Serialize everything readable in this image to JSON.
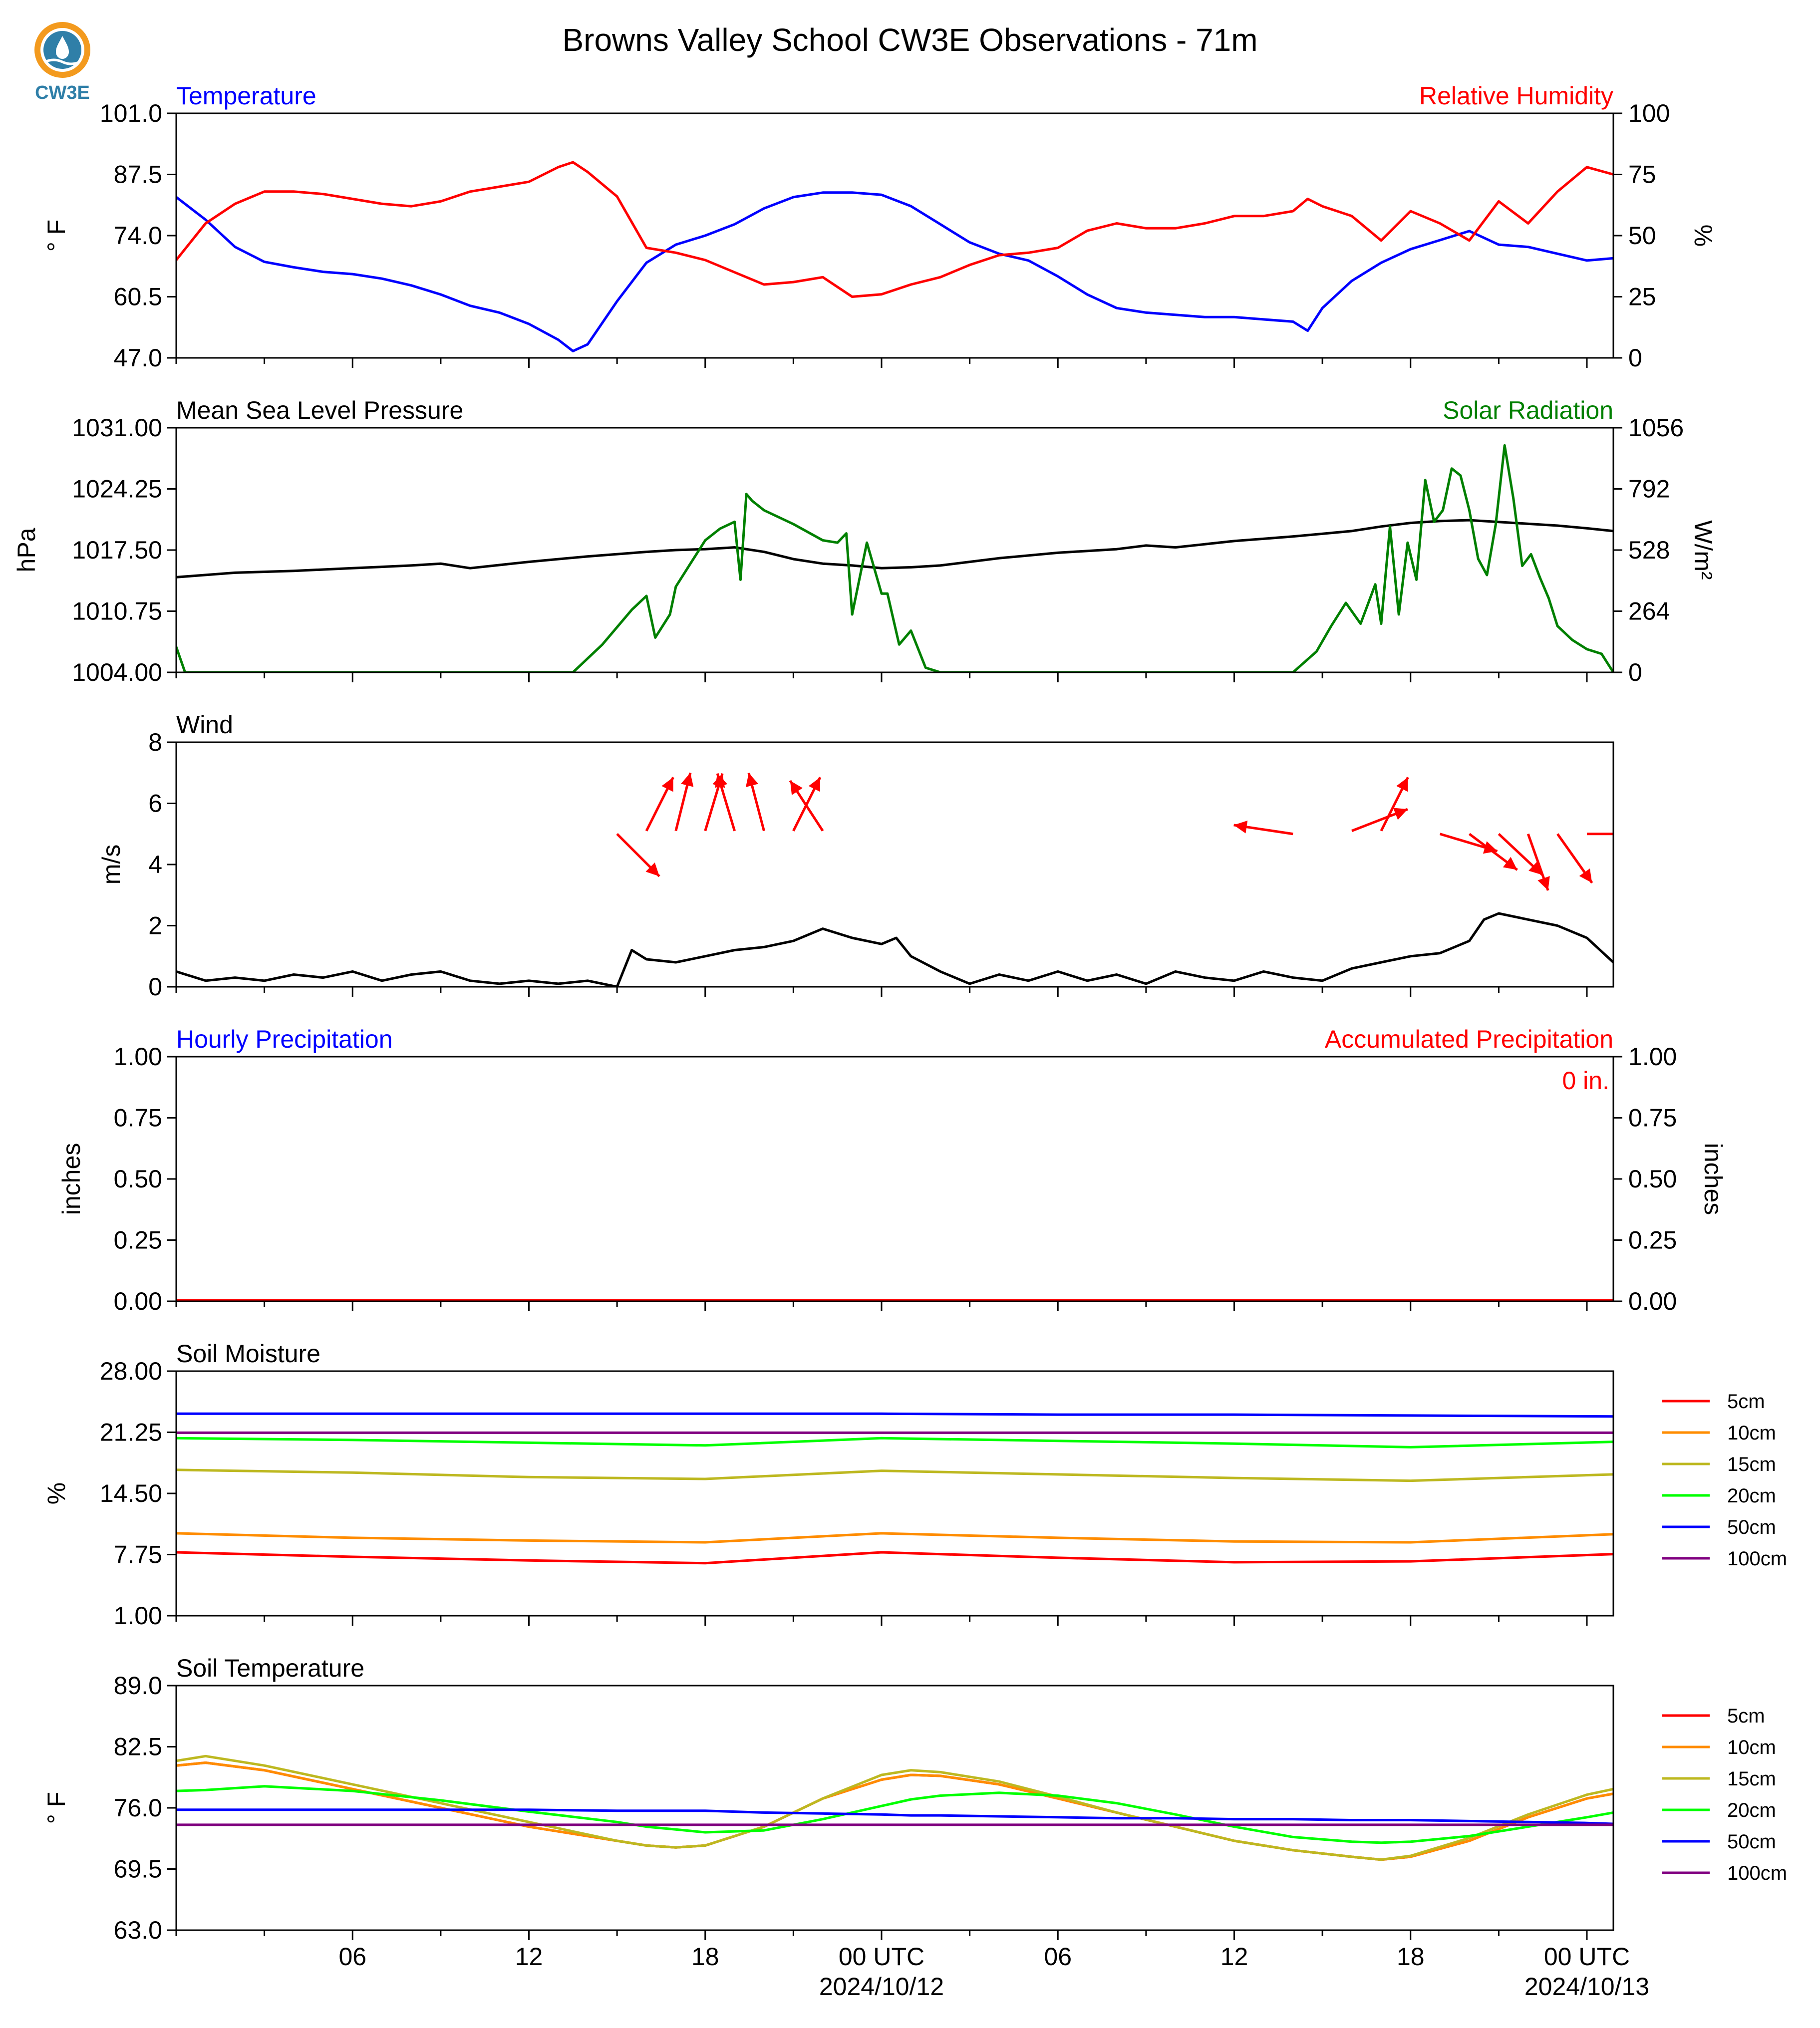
{
  "title": "Browns Valley School CW3E Observations - 71m",
  "logo_text": "CW3E",
  "colors": {
    "blue": "#0000ff",
    "red": "#ff0000",
    "green": "#008000",
    "black": "#000000",
    "soil_5cm": "#ff0000",
    "soil_10cm": "#ff8c00",
    "soil_15cm": "#bdb820",
    "soil_20cm": "#00ff00",
    "soil_50cm": "#0000ff",
    "soil_100cm": "#800080"
  },
  "x_axis": {
    "ticks": [
      {
        "hour": 6,
        "label": "06"
      },
      {
        "hour": 12,
        "label": "12"
      },
      {
        "hour": 18,
        "label": "18"
      },
      {
        "hour": 24,
        "label": "00 UTC"
      },
      {
        "hour": 30,
        "label": "06"
      },
      {
        "hour": 36,
        "label": "12"
      },
      {
        "hour": 42,
        "label": "18"
      },
      {
        "hour": 48,
        "label": "00 UTC"
      }
    ],
    "date_labels": [
      {
        "hour": 24,
        "label": "2024/10/12"
      },
      {
        "hour": 48,
        "label": "2024/10/13"
      }
    ]
  },
  "chart_data": [
    {
      "type": "line",
      "left_title": "Temperature",
      "right_title": "Relative Humidity",
      "ylabel": "° F",
      "ylabel_right": "%",
      "ylim": [
        47.0,
        101.0
      ],
      "ylim_right": [
        0,
        100
      ],
      "yticks": [
        "47.0",
        "60.5",
        "74.0",
        "87.5",
        "101.0"
      ],
      "yticks_right": [
        "0",
        "25",
        "50",
        "75",
        "100"
      ],
      "x_hours": [
        0,
        1,
        2,
        3,
        4,
        5,
        6,
        7,
        8,
        9,
        10,
        11,
        12,
        13,
        13.5,
        14,
        15,
        16,
        17,
        18,
        19,
        20,
        21,
        22,
        23,
        24,
        25,
        26,
        27,
        28,
        29,
        30,
        31,
        32,
        33,
        34,
        35,
        36,
        37,
        38,
        38.5,
        39,
        40,
        41,
        42,
        43,
        44,
        45,
        46,
        47,
        48,
        48.9
      ],
      "series": [
        {
          "name": "Temperature",
          "color": "blue",
          "axis": "left",
          "values": [
            82.5,
            77.5,
            71.5,
            68.2,
            67.0,
            66.0,
            65.5,
            64.5,
            63.0,
            61.0,
            58.5,
            57.0,
            54.5,
            51.0,
            48.5,
            50.0,
            59.5,
            68.0,
            72.0,
            74.0,
            76.5,
            80.0,
            82.5,
            83.5,
            83.5,
            83.0,
            80.5,
            76.5,
            72.5,
            70.0,
            68.5,
            65.0,
            61.0,
            58.0,
            57.0,
            56.5,
            56.0,
            56.0,
            55.5,
            55.0,
            53.0,
            58.0,
            64.0,
            68.0,
            71.0,
            73.0,
            75.0,
            72.0,
            71.5,
            70.0,
            68.5,
            69.0
          ]
        },
        {
          "name": "Relative Humidity",
          "color": "red",
          "axis": "right",
          "values": [
            40,
            55,
            63,
            68,
            68,
            67,
            65,
            63,
            62,
            64,
            68,
            70,
            72,
            78,
            80,
            76,
            66,
            45,
            43,
            40,
            35,
            30,
            31,
            33,
            25,
            26,
            30,
            33,
            38,
            42,
            43,
            45,
            52,
            55,
            53,
            53,
            55,
            58,
            58,
            60,
            65,
            62,
            58,
            48,
            60,
            55,
            48,
            64,
            55,
            68,
            78,
            75
          ]
        }
      ]
    },
    {
      "type": "line",
      "left_title": "Mean Sea Level Pressure",
      "right_title": "Solar Radiation",
      "ylabel": "hPa",
      "ylabel_right": "W/m²",
      "ylim": [
        1004.0,
        1031.0
      ],
      "ylim_right": [
        0,
        1056
      ],
      "yticks": [
        "1004.00",
        "1010.75",
        "1017.50",
        "1024.25",
        "1031.00"
      ],
      "yticks_right": [
        "0",
        "264",
        "528",
        "792",
        "1056"
      ],
      "series": [
        {
          "name": "Mean Sea Level Pressure",
          "color": "black",
          "axis": "left",
          "x_hours": [
            0,
            2,
            4,
            6,
            8,
            9,
            10,
            12,
            14,
            16,
            17,
            18,
            19,
            20,
            21,
            22,
            23,
            24,
            25,
            26,
            27,
            28,
            30,
            32,
            33,
            34,
            36,
            38,
            40,
            41,
            42,
            43,
            44,
            45,
            46,
            47,
            48,
            48.9
          ],
          "values": [
            1014.5,
            1015.0,
            1015.2,
            1015.5,
            1015.8,
            1016.0,
            1015.5,
            1016.2,
            1016.8,
            1017.3,
            1017.5,
            1017.6,
            1017.8,
            1017.3,
            1016.5,
            1016.0,
            1015.8,
            1015.5,
            1015.6,
            1015.8,
            1016.2,
            1016.6,
            1017.2,
            1017.6,
            1018.0,
            1017.8,
            1018.5,
            1019.0,
            1019.6,
            1020.1,
            1020.5,
            1020.7,
            1020.8,
            1020.6,
            1020.4,
            1020.2,
            1019.9,
            1019.6
          ]
        },
        {
          "name": "Solar Radiation",
          "color": "green",
          "axis": "right",
          "x_hours": [
            0,
            0.3,
            13.5,
            14.5,
            15.5,
            16.0,
            16.3,
            16.8,
            17.0,
            17.5,
            18.0,
            18.5,
            19.0,
            19.2,
            19.4,
            19.6,
            20.0,
            21.0,
            22.0,
            22.5,
            22.8,
            23.0,
            23.5,
            24.0,
            24.2,
            24.6,
            25.0,
            25.5,
            26.0,
            37.0,
            38.0,
            38.8,
            39.3,
            39.8,
            40.3,
            40.8,
            41.0,
            41.3,
            41.6,
            41.9,
            42.2,
            42.5,
            42.8,
            43.1,
            43.4,
            43.7,
            44.0,
            44.3,
            44.6,
            44.9,
            45.2,
            45.5,
            45.8,
            46.1,
            46.4,
            46.7,
            47.0,
            47.5,
            48.0,
            48.5,
            48.9
          ],
          "values": [
            110,
            0,
            0,
            120,
            270,
            330,
            150,
            250,
            370,
            470,
            570,
            620,
            650,
            400,
            770,
            740,
            700,
            640,
            570,
            560,
            600,
            250,
            560,
            340,
            340,
            120,
            180,
            20,
            0,
            0,
            0,
            90,
            200,
            300,
            210,
            380,
            210,
            630,
            250,
            560,
            400,
            830,
            650,
            700,
            880,
            850,
            700,
            490,
            420,
            640,
            980,
            750,
            460,
            510,
            410,
            320,
            200,
            140,
            100,
            80,
            0
          ]
        }
      ]
    },
    {
      "type": "line",
      "left_title": "Wind",
      "ylabel": "m/s",
      "ylim": [
        0,
        8
      ],
      "yticks": [
        "0",
        "2",
        "4",
        "6",
        "8"
      ],
      "x_hours": [
        0,
        1,
        2,
        3,
        4,
        5,
        6,
        7,
        8,
        9,
        10,
        11,
        12,
        13,
        14,
        15,
        15.5,
        16,
        17,
        18,
        19,
        20,
        21,
        22,
        23,
        24,
        24.5,
        25,
        26,
        27,
        28,
        29,
        30,
        31,
        32,
        33,
        34,
        35,
        36,
        37,
        38,
        39,
        40,
        41,
        42,
        43,
        44,
        44.5,
        45,
        46,
        47,
        48,
        48.9
      ],
      "series": [
        {
          "name": "Wind Speed",
          "color": "black",
          "values": [
            0.5,
            0.2,
            0.3,
            0.2,
            0.4,
            0.3,
            0.5,
            0.2,
            0.4,
            0.5,
            0.2,
            0.1,
            0.2,
            0.1,
            0.2,
            0.0,
            1.2,
            0.9,
            0.8,
            1.0,
            1.2,
            1.3,
            1.5,
            1.9,
            1.6,
            1.4,
            1.6,
            1.0,
            0.5,
            0.1,
            0.4,
            0.2,
            0.5,
            0.2,
            0.4,
            0.1,
            0.5,
            0.3,
            0.2,
            0.5,
            0.3,
            0.2,
            0.6,
            0.8,
            1.0,
            1.1,
            1.5,
            2.2,
            2.4,
            2.2,
            2.0,
            1.6,
            0.8
          ]
        }
      ],
      "wind_arrows": [
        {
          "hour": 15,
          "speed": 5.0,
          "dx": 1.4,
          "dy": -1.4
        },
        {
          "hour": 16,
          "speed": 5.1,
          "dx": 1.0,
          "dy": 2.0
        },
        {
          "hour": 17,
          "speed": 5.1,
          "dx": 0.5,
          "dy": 2.0
        },
        {
          "hour": 18,
          "speed": 5.1,
          "dx": 0.6,
          "dy": 2.0
        },
        {
          "hour": 19,
          "speed": 5.1,
          "dx": -0.6,
          "dy": 2.0
        },
        {
          "hour": 20,
          "speed": 5.1,
          "dx": -0.5,
          "dy": 1.9
        },
        {
          "hour": 21,
          "speed": 5.1,
          "dx": 1.0,
          "dy": 2.0
        },
        {
          "hour": 22,
          "speed": 5.1,
          "dx": -1.3,
          "dy": 2.0
        },
        {
          "hour": 38,
          "speed": 5.0,
          "dx": -2.0,
          "dy": 0.3
        },
        {
          "hour": 40,
          "speed": 5.1,
          "dx": 1.8,
          "dy": 0.7
        },
        {
          "hour": 41,
          "speed": 5.1,
          "dx": 0.8,
          "dy": 1.6
        },
        {
          "hour": 43,
          "speed": 5.0,
          "dx": 2.0,
          "dy": -0.6
        },
        {
          "hour": 44,
          "speed": 5.0,
          "dx": 1.6,
          "dy": -1.2
        },
        {
          "hour": 45,
          "speed": 5.0,
          "dx": 1.6,
          "dy": -1.5
        },
        {
          "hour": 46,
          "speed": 5.0,
          "dx": 0.6,
          "dy": -1.7
        },
        {
          "hour": 47,
          "speed": 5.0,
          "dx": 1.2,
          "dy": -1.7
        },
        {
          "hour": 48,
          "speed": 5.0,
          "dx": 2.0,
          "dy": 0.0
        }
      ]
    },
    {
      "type": "bar",
      "left_title": "Hourly Precipitation",
      "right_title": "Accumulated Precipitation",
      "ylabel": "inches",
      "ylabel_right": "inches",
      "ylim": [
        0,
        1
      ],
      "yticks": [
        "0.00",
        "0.25",
        "0.50",
        "0.75",
        "1.00"
      ],
      "yticks_right": [
        "0.00",
        "0.25",
        "0.50",
        "0.75",
        "1.00"
      ],
      "accumulated_label": "0 in.",
      "series": [
        {
          "name": "Hourly Precipitation",
          "color": "blue",
          "values": [
            0
          ]
        },
        {
          "name": "Accumulated Precipitation",
          "color": "red",
          "values": [
            0
          ]
        }
      ]
    },
    {
      "type": "line",
      "left_title": "Soil Moisture",
      "ylabel": "%",
      "ylim": [
        1.0,
        28.0
      ],
      "yticks": [
        "1.00",
        "7.75",
        "14.50",
        "21.25",
        "28.00"
      ],
      "x_hours": [
        0,
        6,
        12,
        18,
        24,
        30,
        36,
        42,
        48.9
      ],
      "series": [
        {
          "name": "5cm",
          "color": "soil_5cm",
          "values": [
            8.0,
            7.5,
            7.1,
            6.8,
            8.0,
            7.4,
            6.9,
            7.0,
            7.8
          ]
        },
        {
          "name": "10cm",
          "color": "soil_10cm",
          "values": [
            10.1,
            9.6,
            9.3,
            9.1,
            10.1,
            9.6,
            9.2,
            9.1,
            10.0
          ]
        },
        {
          "name": "15cm",
          "color": "soil_15cm",
          "values": [
            17.1,
            16.8,
            16.3,
            16.1,
            17.0,
            16.6,
            16.2,
            15.9,
            16.6
          ]
        },
        {
          "name": "20cm",
          "color": "soil_20cm",
          "values": [
            20.6,
            20.4,
            20.1,
            19.8,
            20.6,
            20.3,
            20.0,
            19.6,
            20.2
          ]
        },
        {
          "name": "50cm",
          "color": "soil_50cm",
          "values": [
            23.3,
            23.3,
            23.3,
            23.3,
            23.3,
            23.2,
            23.2,
            23.1,
            23.0
          ]
        },
        {
          "name": "100cm",
          "color": "soil_100cm",
          "values": [
            21.2,
            21.2,
            21.2,
            21.2,
            21.2,
            21.2,
            21.2,
            21.2,
            21.2
          ]
        }
      ]
    },
    {
      "type": "line",
      "left_title": "Soil Temperature",
      "ylabel": "° F",
      "ylim": [
        63.0,
        89.0
      ],
      "yticks": [
        "63.0",
        "69.5",
        "76.0",
        "82.5",
        "89.0"
      ],
      "x_hours": [
        0,
        1,
        3,
        6,
        9,
        12,
        15,
        16,
        17,
        18,
        20,
        22,
        24,
        25,
        26,
        28,
        30,
        32,
        34,
        36,
        38,
        40,
        41,
        42,
        44,
        46,
        48,
        48.9
      ],
      "series": [
        {
          "name": "5cm",
          "color": "soil_5cm",
          "values": [
            80.5,
            80.8,
            80.0,
            78.0,
            76.0,
            74.0,
            72.5,
            72.0,
            71.8,
            72.0,
            74.0,
            77.0,
            79.0,
            79.5,
            79.4,
            78.5,
            77.0,
            75.5,
            74.0,
            72.5,
            71.5,
            70.8,
            70.5,
            70.8,
            72.5,
            75.0,
            77.0,
            77.5
          ]
        },
        {
          "name": "10cm",
          "color": "soil_10cm",
          "values": [
            80.5,
            80.8,
            80.0,
            78.0,
            76.0,
            74.0,
            72.5,
            72.0,
            71.8,
            72.0,
            74.0,
            77.0,
            79.0,
            79.5,
            79.4,
            78.5,
            77.0,
            75.5,
            74.0,
            72.5,
            71.5,
            70.8,
            70.5,
            70.8,
            72.5,
            75.0,
            77.0,
            77.5
          ]
        },
        {
          "name": "15cm",
          "color": "soil_15cm",
          "values": [
            81.0,
            81.5,
            80.5,
            78.5,
            76.5,
            74.5,
            72.5,
            72.0,
            71.8,
            72.0,
            74.0,
            77.0,
            79.5,
            80.0,
            79.8,
            78.8,
            77.2,
            75.5,
            74.0,
            72.5,
            71.5,
            70.8,
            70.5,
            70.9,
            72.8,
            75.3,
            77.4,
            78.0
          ]
        },
        {
          "name": "20cm",
          "color": "soil_20cm",
          "values": [
            77.8,
            77.9,
            78.3,
            77.8,
            76.8,
            75.6,
            74.5,
            74.0,
            73.7,
            73.4,
            73.6,
            74.8,
            76.2,
            76.9,
            77.3,
            77.6,
            77.3,
            76.5,
            75.3,
            74.0,
            72.9,
            72.4,
            72.3,
            72.4,
            73.0,
            74.0,
            75.0,
            75.5
          ]
        },
        {
          "name": "50cm",
          "color": "soil_50cm",
          "values": [
            75.8,
            75.8,
            75.8,
            75.8,
            75.8,
            75.8,
            75.7,
            75.7,
            75.7,
            75.7,
            75.5,
            75.4,
            75.3,
            75.2,
            75.2,
            75.1,
            75.0,
            74.9,
            74.9,
            74.8,
            74.8,
            74.7,
            74.7,
            74.7,
            74.6,
            74.5,
            74.4,
            74.3
          ]
        },
        {
          "name": "100cm",
          "color": "soil_100cm",
          "values": [
            74.2,
            74.2,
            74.2,
            74.2,
            74.2,
            74.2,
            74.2,
            74.2,
            74.2,
            74.2,
            74.2,
            74.2,
            74.2,
            74.2,
            74.2,
            74.2,
            74.2,
            74.2,
            74.2,
            74.2,
            74.2,
            74.2,
            74.2,
            74.2,
            74.2,
            74.2,
            74.2,
            74.2
          ]
        }
      ]
    }
  ]
}
